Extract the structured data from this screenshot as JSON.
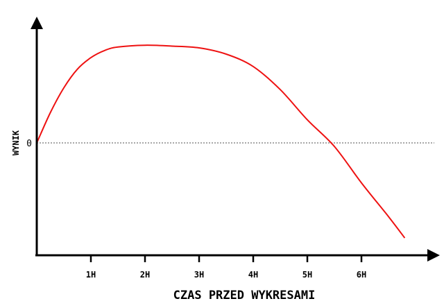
{
  "chart_data": {
    "type": "line",
    "xlabel": "CZAS PRZED WYKRESAMI",
    "ylabel": "WYNIK",
    "x_ticks": [
      {
        "value": 1,
        "label": "1H"
      },
      {
        "value": 2,
        "label": "2H"
      },
      {
        "value": 3,
        "label": "3H"
      },
      {
        "value": 4,
        "label": "4H"
      },
      {
        "value": 5,
        "label": "5H"
      },
      {
        "value": 6,
        "label": "6H"
      }
    ],
    "y_ticks": [
      {
        "value": 0,
        "label": "0"
      }
    ],
    "reference_line": {
      "y": 0,
      "style": "dotted"
    },
    "xlim": [
      0,
      7.4
    ],
    "ylim": [
      -1.2,
      1.3
    ],
    "grid": false,
    "series": [
      {
        "color": "#ee1111",
        "x": [
          0,
          0.25,
          0.5,
          0.75,
          1.0,
          1.25,
          1.5,
          2.0,
          2.5,
          3.0,
          3.5,
          4.0,
          4.5,
          5.0,
          5.5,
          6.0,
          6.5,
          6.8
        ],
        "y": [
          0,
          0.34,
          0.62,
          0.83,
          0.96,
          1.04,
          1.08,
          1.1,
          1.09,
          1.07,
          1.0,
          0.86,
          0.6,
          0.26,
          -0.04,
          -0.45,
          -0.83,
          -1.07
        ]
      }
    ]
  }
}
